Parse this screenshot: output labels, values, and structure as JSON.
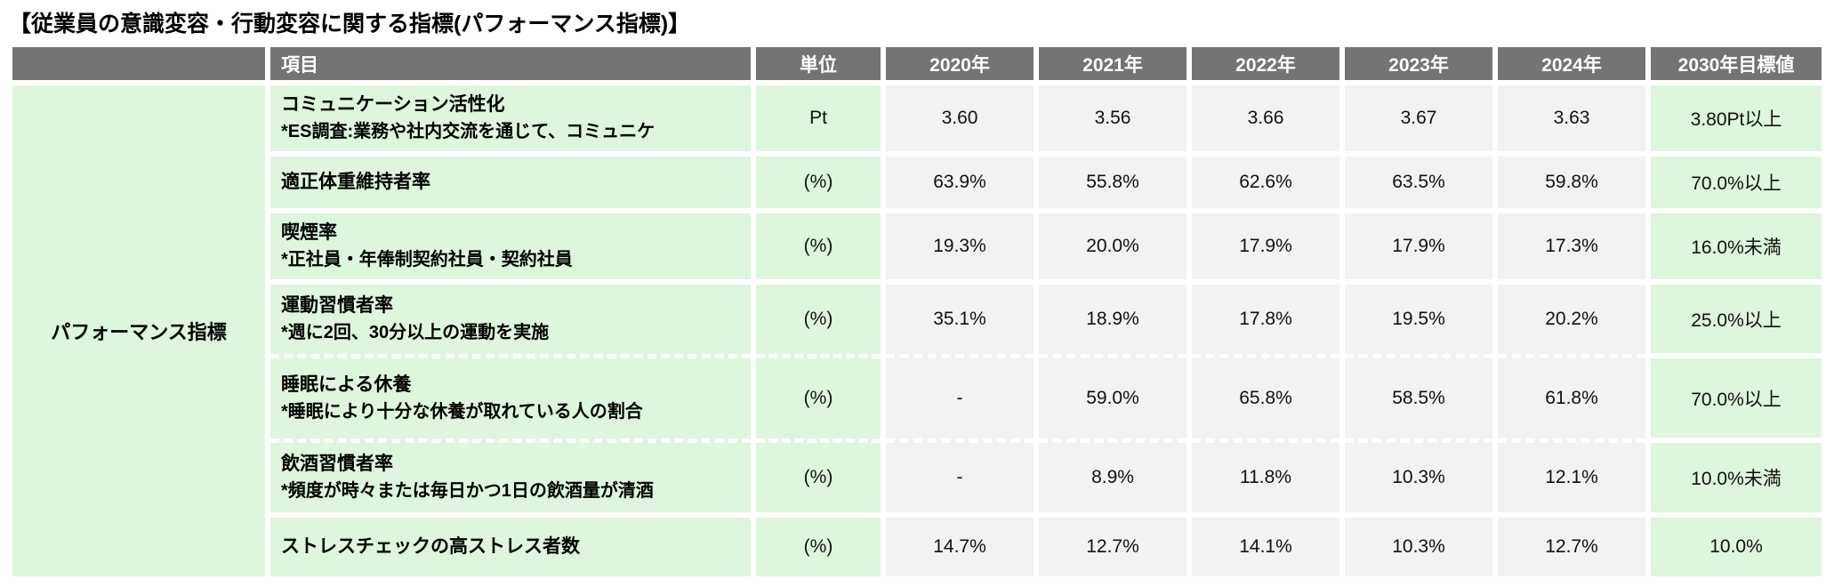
{
  "page": {
    "title": "【従業員の意識変容・行動変容に関する指標(パフォーマンス指標)】"
  },
  "table": {
    "row_group_label": "パフォーマンス指標",
    "headers": {
      "group": "",
      "item": "項目",
      "unit": "単位",
      "years": [
        "2020年",
        "2021年",
        "2022年",
        "2023年",
        "2024年"
      ],
      "target": "2030年目標値"
    },
    "rows": [
      {
        "item": "コミュニケーション活性化",
        "note": "*ES調査:業務や社内交流を通じて、コミュニケ",
        "unit": "Pt",
        "values": [
          "3.60",
          "3.56",
          "3.66",
          "3.67",
          "3.63"
        ],
        "target": "3.80Pt以上",
        "separator": "solid"
      },
      {
        "item": "適正体重維持者率",
        "note": "",
        "unit": "(%)",
        "values": [
          "63.9%",
          "55.8%",
          "62.6%",
          "63.5%",
          "59.8%"
        ],
        "target": "70.0%以上",
        "separator": "solid"
      },
      {
        "item": "喫煙率",
        "note": "*正社員・年俸制契約社員・契約社員",
        "unit": "(%)",
        "values": [
          "19.3%",
          "20.0%",
          "17.9%",
          "17.9%",
          "17.3%"
        ],
        "target": "16.0%未満",
        "separator": "solid"
      },
      {
        "item": "運動習慣者率",
        "note": "*週に2回、30分以上の運動を実施",
        "unit": "(%)",
        "values": [
          "35.1%",
          "18.9%",
          "17.8%",
          "19.5%",
          "20.2%"
        ],
        "target": "25.0%以上",
        "separator": "dashed"
      },
      {
        "item": "睡眠による休養",
        "note": "*睡眠により十分な休養が取れている人の割合",
        "unit": "(%)",
        "values": [
          "-",
          "59.0%",
          "65.8%",
          "58.5%",
          "61.8%"
        ],
        "target": "70.0%以上",
        "separator": "dashed"
      },
      {
        "item": "飲酒習慣者率",
        "note": "*頻度が時々または毎日かつ1日の飲酒量が清酒",
        "unit": "(%)",
        "values": [
          "-",
          "8.9%",
          "11.8%",
          "10.3%",
          "12.1%"
        ],
        "target": "10.0%未満",
        "separator": "solid"
      },
      {
        "item": "ストレスチェックの高ストレス者数",
        "note": "",
        "unit": "(%)",
        "values": [
          "14.7%",
          "12.7%",
          "14.1%",
          "10.3%",
          "12.7%"
        ],
        "target": "10.0%",
        "separator": "solid"
      }
    ],
    "colors": {
      "header_bg": "#747474",
      "header_text": "#ffffff",
      "green_bg": "#def5de",
      "value_bg": "#f2f2f2",
      "page_bg": "#ffffff",
      "text": "#111111"
    }
  },
  "chart_data": {
    "type": "table",
    "title": "従業員の意識変容・行動変容に関する指標(パフォーマンス指標)",
    "group": "パフォーマンス指標",
    "columns": [
      "項目",
      "単位",
      "2020年",
      "2021年",
      "2022年",
      "2023年",
      "2024年",
      "2030年目標値"
    ],
    "series": [
      {
        "name": "コミュニケーション活性化",
        "unit": "Pt",
        "values": [
          3.6,
          3.56,
          3.66,
          3.67,
          3.63
        ],
        "target": "3.80Pt以上"
      },
      {
        "name": "適正体重維持者率",
        "unit": "%",
        "values": [
          63.9,
          55.8,
          62.6,
          63.5,
          59.8
        ],
        "target": "70.0%以上"
      },
      {
        "name": "喫煙率",
        "unit": "%",
        "values": [
          19.3,
          20.0,
          17.9,
          17.9,
          17.3
        ],
        "target": "16.0%未満"
      },
      {
        "name": "運動習慣者率",
        "unit": "%",
        "values": [
          35.1,
          18.9,
          17.8,
          19.5,
          20.2
        ],
        "target": "25.0%以上"
      },
      {
        "name": "睡眠による休養",
        "unit": "%",
        "values": [
          null,
          59.0,
          65.8,
          58.5,
          61.8
        ],
        "target": "70.0%以上"
      },
      {
        "name": "飲酒習慣者率",
        "unit": "%",
        "values": [
          null,
          8.9,
          11.8,
          10.3,
          12.1
        ],
        "target": "10.0%未満"
      },
      {
        "name": "ストレスチェックの高ストレス者数",
        "unit": "%",
        "values": [
          14.7,
          12.7,
          14.1,
          10.3,
          12.7
        ],
        "target": "10.0%"
      }
    ],
    "x_categories": [
      2020,
      2021,
      2022,
      2023,
      2024
    ]
  }
}
